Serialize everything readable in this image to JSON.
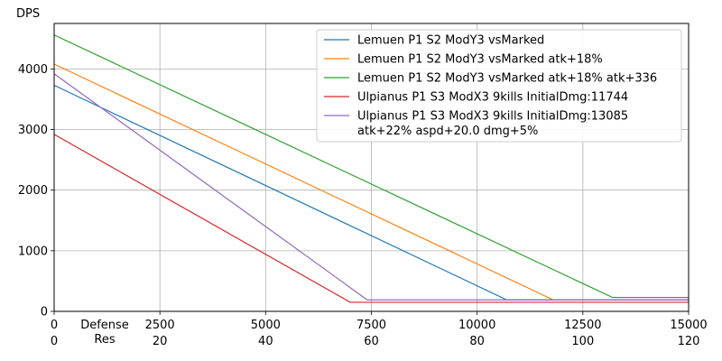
{
  "chart_data": {
    "type": "line",
    "ylabel": "DPS",
    "xlabel": "Defense",
    "xlabel2": "Res",
    "xlim": [
      0,
      15000
    ],
    "ylim": [
      0,
      4750
    ],
    "x_ticks": [
      0,
      2500,
      5000,
      7500,
      10000,
      12500,
      15000
    ],
    "x_ticks_res": [
      0,
      20,
      40,
      60,
      80,
      100,
      120
    ],
    "y_ticks": [
      0,
      1000,
      2000,
      3000,
      4000
    ],
    "grid": true,
    "legend_position": "top-right",
    "series": [
      {
        "name": "Lemuen P1 S2 ModY3 vsMarked",
        "color": "#1f77b4",
        "points": [
          [
            0,
            3730
          ],
          [
            10700,
            190
          ],
          [
            15000,
            190
          ]
        ]
      },
      {
        "name": "Lemuen P1 S2 ModY3 vsMarked atk+18%",
        "color": "#ff7f0e",
        "points": [
          [
            0,
            4080
          ],
          [
            11800,
            190
          ],
          [
            15000,
            190
          ]
        ]
      },
      {
        "name": "Lemuen P1 S2 ModY3 vsMarked atk+18% atk+336",
        "color": "#2ca02c",
        "points": [
          [
            0,
            4560
          ],
          [
            13200,
            230
          ],
          [
            15000,
            230
          ]
        ]
      },
      {
        "name": "Ulpianus P1 S3 ModX3 9kills InitialDmg:11744",
        "color": "#d62728",
        "points": [
          [
            0,
            2920
          ],
          [
            7000,
            150
          ],
          [
            15000,
            150
          ]
        ]
      },
      {
        "name": "Ulpianus P1 S3 ModX3 9kills InitialDmg:13085",
        "name2": "atk+22% aspd+20.0 dmg+5%",
        "color": "#9467bd",
        "points": [
          [
            0,
            3920
          ],
          [
            7400,
            190
          ],
          [
            15000,
            190
          ]
        ]
      }
    ]
  }
}
